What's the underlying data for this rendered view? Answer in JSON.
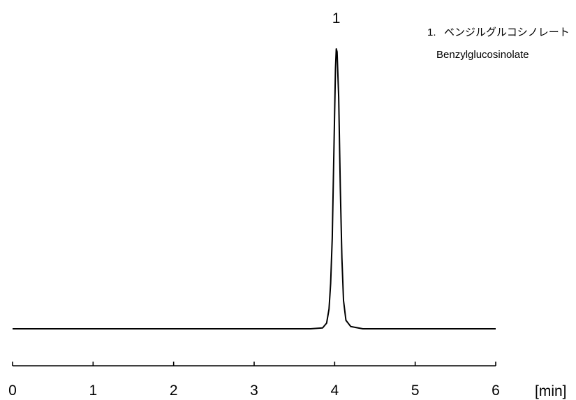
{
  "chart_data": {
    "type": "line",
    "title": "",
    "xlabel": "",
    "ylabel": "",
    "x_unit": "[min]",
    "xlim": [
      0,
      6
    ],
    "x_ticks": [
      "0",
      "1",
      "2",
      "3",
      "4",
      "5",
      "6"
    ],
    "grid": false,
    "series": [
      {
        "x": [
          0,
          3.7,
          3.85,
          3.9,
          3.93,
          3.95,
          3.97,
          3.99,
          4.01,
          4.02,
          4.03,
          4.05,
          4.07,
          4.09,
          4.11,
          4.14,
          4.2,
          4.35,
          6
        ],
        "y": [
          0,
          0,
          0.003,
          0.02,
          0.07,
          0.16,
          0.32,
          0.62,
          0.92,
          0.99,
          0.98,
          0.82,
          0.5,
          0.25,
          0.1,
          0.03,
          0.008,
          0,
          0
        ]
      }
    ],
    "peaks": [
      {
        "label": "1",
        "x": 4.02
      }
    ],
    "legend": {
      "placement": "top-right",
      "entries": [
        {
          "number": "1.",
          "name_ja": "ベンジルグルコシノレート",
          "name_en": "Benzylglucosinolate"
        }
      ]
    }
  }
}
